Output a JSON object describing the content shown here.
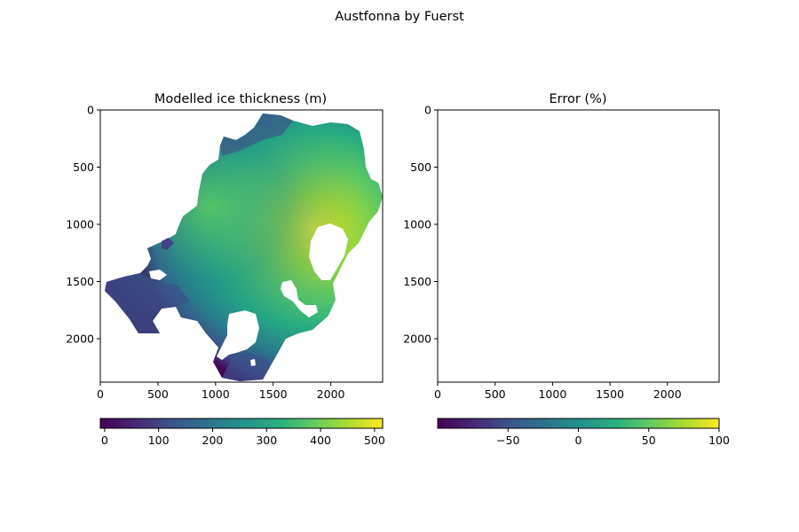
{
  "figure_title": "Austfonna by Fuerst",
  "chart_data": [
    {
      "type": "heatmap",
      "title": "Modelled ice thickness (m)",
      "colormap": "viridis",
      "x_range": [
        0,
        2450
      ],
      "y_range": [
        0,
        2380
      ],
      "y_inverted": true,
      "x_ticks": [
        0,
        500,
        1000,
        1500,
        2000
      ],
      "y_ticks": [
        0,
        500,
        1000,
        1500,
        2000
      ],
      "colorbar": {
        "orientation": "horizontal",
        "range": [
          -8,
          515
        ],
        "ticks": [
          0,
          100,
          200,
          300,
          400,
          500
        ],
        "tick_labels": [
          "0",
          "100",
          "200",
          "300",
          "400",
          "500"
        ]
      }
    },
    {
      "type": "heatmap",
      "title": "Error (%)",
      "colormap": "viridis",
      "empty": true,
      "x_range": [
        0,
        2450
      ],
      "y_range": [
        0,
        2380
      ],
      "y_inverted": true,
      "x_ticks": [
        0,
        500,
        1000,
        1500,
        2000
      ],
      "y_ticks": [
        0,
        500,
        1000,
        1500,
        2000
      ],
      "colorbar": {
        "orientation": "horizontal",
        "range": [
          -100,
          100
        ],
        "ticks": [
          -50,
          0,
          50,
          100
        ],
        "tick_labels": [
          "−50",
          "0",
          "50",
          "100"
        ]
      }
    }
  ]
}
